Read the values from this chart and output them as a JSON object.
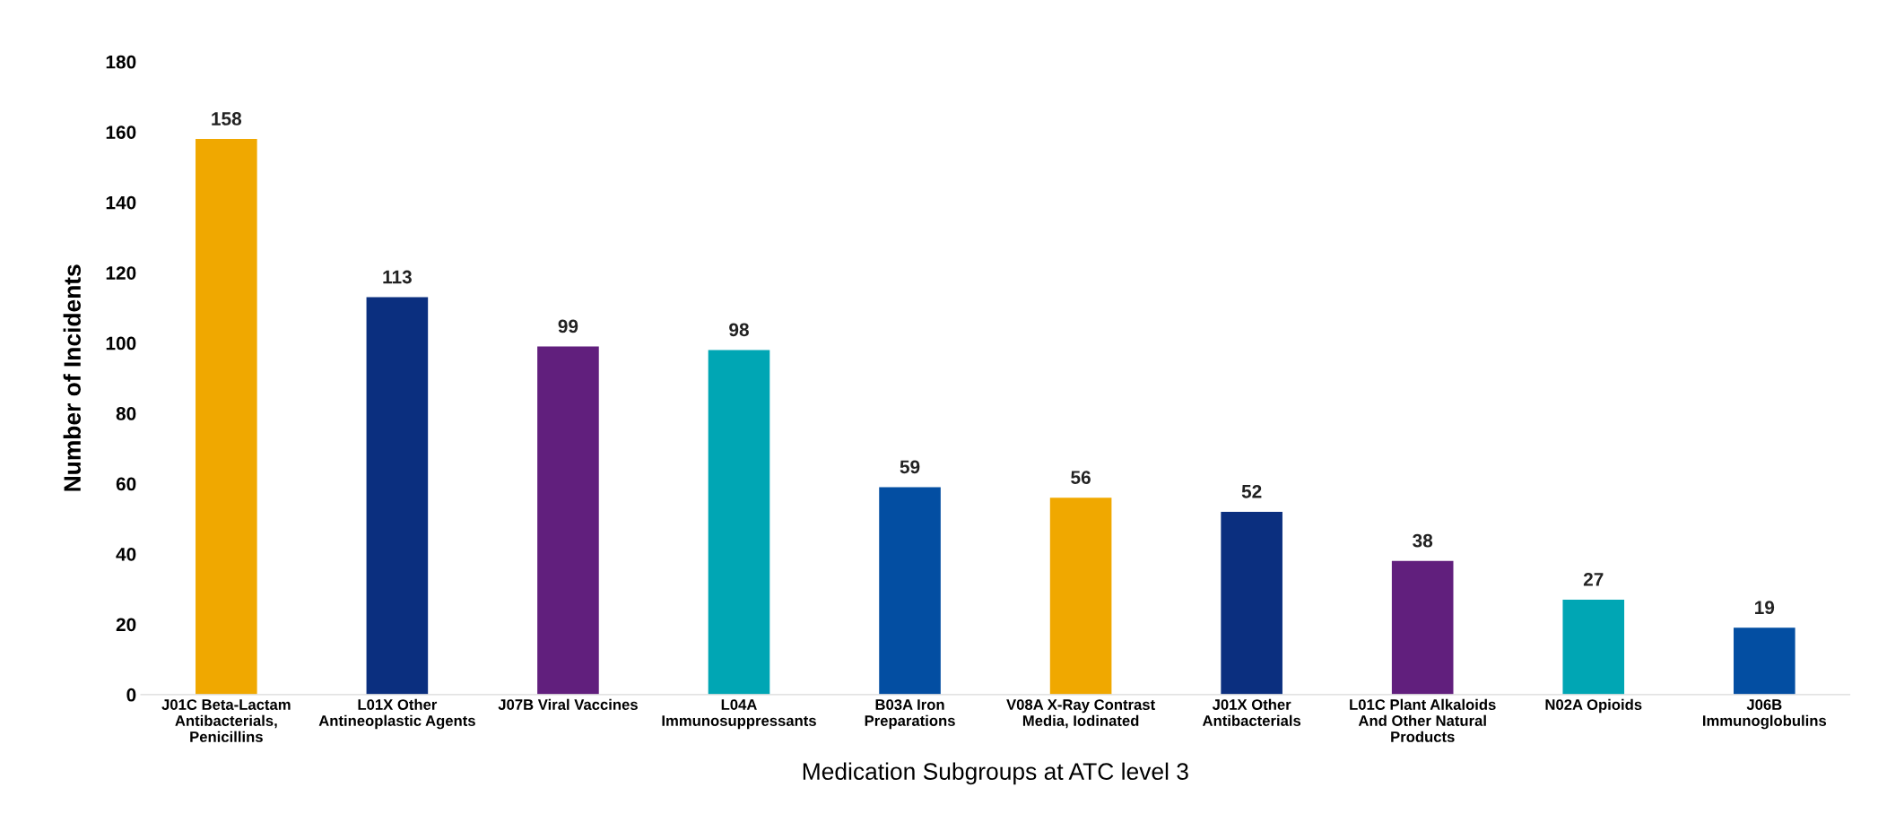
{
  "chart_data": {
    "type": "bar",
    "xlabel": "Medication Subgroups at ATC level 3",
    "ylabel": "Number of Incidents",
    "categories": [
      "J01C Beta-Lactam\nAntibacterials,\nPenicillins",
      "L01X Other\nAntineoplastic Agents",
      "J07B Viral Vaccines",
      "L04A\nImmunosuppressants",
      "B03A Iron\nPreparations",
      "V08A X-Ray Contrast\nMedia, Iodinated",
      "J01X Other\nAntibacterials",
      "L01C Plant Alkaloids\nAnd Other Natural\nProducts",
      "N02A Opioids",
      "J06B\nImmunoglobulins"
    ],
    "values": [
      158,
      113,
      99,
      98,
      59,
      56,
      52,
      38,
      27,
      19
    ],
    "colors": [
      "#f0a800",
      "#0b2f7f",
      "#611f7d",
      "#00a6b4",
      "#034ea2",
      "#f0a800",
      "#0b2f7f",
      "#611f7d",
      "#00a6b4",
      "#034ea2"
    ],
    "ylim": [
      0,
      180
    ],
    "yticks": [
      0,
      20,
      40,
      60,
      80,
      100,
      120,
      140,
      160,
      180
    ],
    "data_labels": true,
    "grid": false,
    "legend": false
  }
}
